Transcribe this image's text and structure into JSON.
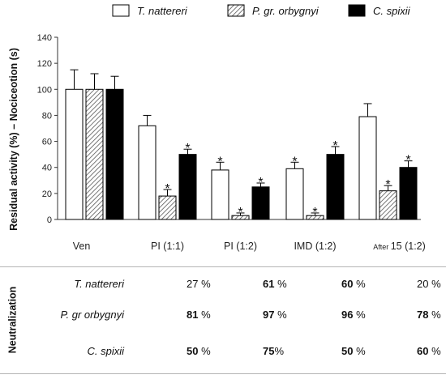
{
  "chart_data": {
    "type": "bar",
    "ylabel": "Residual activity (%) – Nociceotion (s)",
    "ylim": [
      0,
      140
    ],
    "yticks": [
      0,
      20,
      40,
      60,
      80,
      100,
      120,
      140
    ],
    "categories": [
      {
        "label": "Ven",
        "prefix": ""
      },
      {
        "label": "PI (1:1)",
        "prefix": ""
      },
      {
        "label": "PI (1:2)",
        "prefix": ""
      },
      {
        "label": "IMD (1:2)",
        "prefix": ""
      },
      {
        "label": "15 (1:2)",
        "prefix": "After"
      }
    ],
    "series": [
      {
        "name": "T. nattereri",
        "fill": "#ffffff",
        "values": [
          100,
          72,
          38,
          39,
          79
        ],
        "errors": [
          15,
          8,
          6,
          5,
          10
        ],
        "significant": [
          false,
          false,
          true,
          true,
          false
        ]
      },
      {
        "name": "P. gr. orbygnyi",
        "fill": "hatch",
        "values": [
          100,
          18,
          3,
          3,
          22
        ],
        "errors": [
          12,
          5,
          2,
          2,
          4
        ],
        "significant": [
          false,
          true,
          true,
          true,
          true
        ]
      },
      {
        "name": "C. spixii",
        "fill": "#000000",
        "values": [
          100,
          50,
          25,
          50,
          40
        ],
        "errors": [
          10,
          4,
          3,
          6,
          5
        ],
        "significant": [
          false,
          true,
          true,
          true,
          true
        ]
      }
    ],
    "significance_marker": "*",
    "legend_position": "top",
    "grid": false
  },
  "table": {
    "label": "Neutralization",
    "rows": [
      {
        "name": "T. nattereri",
        "cells": [
          {
            "v": "27",
            "u": " %",
            "bold": false
          },
          {
            "v": "61",
            "u": " %",
            "bold": true
          },
          {
            "v": "60",
            "u": " %",
            "bold": true
          },
          {
            "v": "20",
            "u": " %",
            "bold": false
          }
        ]
      },
      {
        "name": "P. gr orbygnyi",
        "cells": [
          {
            "v": "81",
            "u": " %",
            "bold": true
          },
          {
            "v": "97",
            "u": " %",
            "bold": true
          },
          {
            "v": "96",
            "u": " %",
            "bold": true
          },
          {
            "v": "78",
            "u": " %",
            "bold": true
          }
        ]
      },
      {
        "name": "C. spixii",
        "cells": [
          {
            "v": "50",
            "u": " %",
            "bold": true
          },
          {
            "v": "75",
            "u": "%",
            "bold": true
          },
          {
            "v": "50",
            "u": " %",
            "bold": true
          },
          {
            "v": "60",
            "u": " %",
            "bold": true
          }
        ]
      }
    ]
  }
}
